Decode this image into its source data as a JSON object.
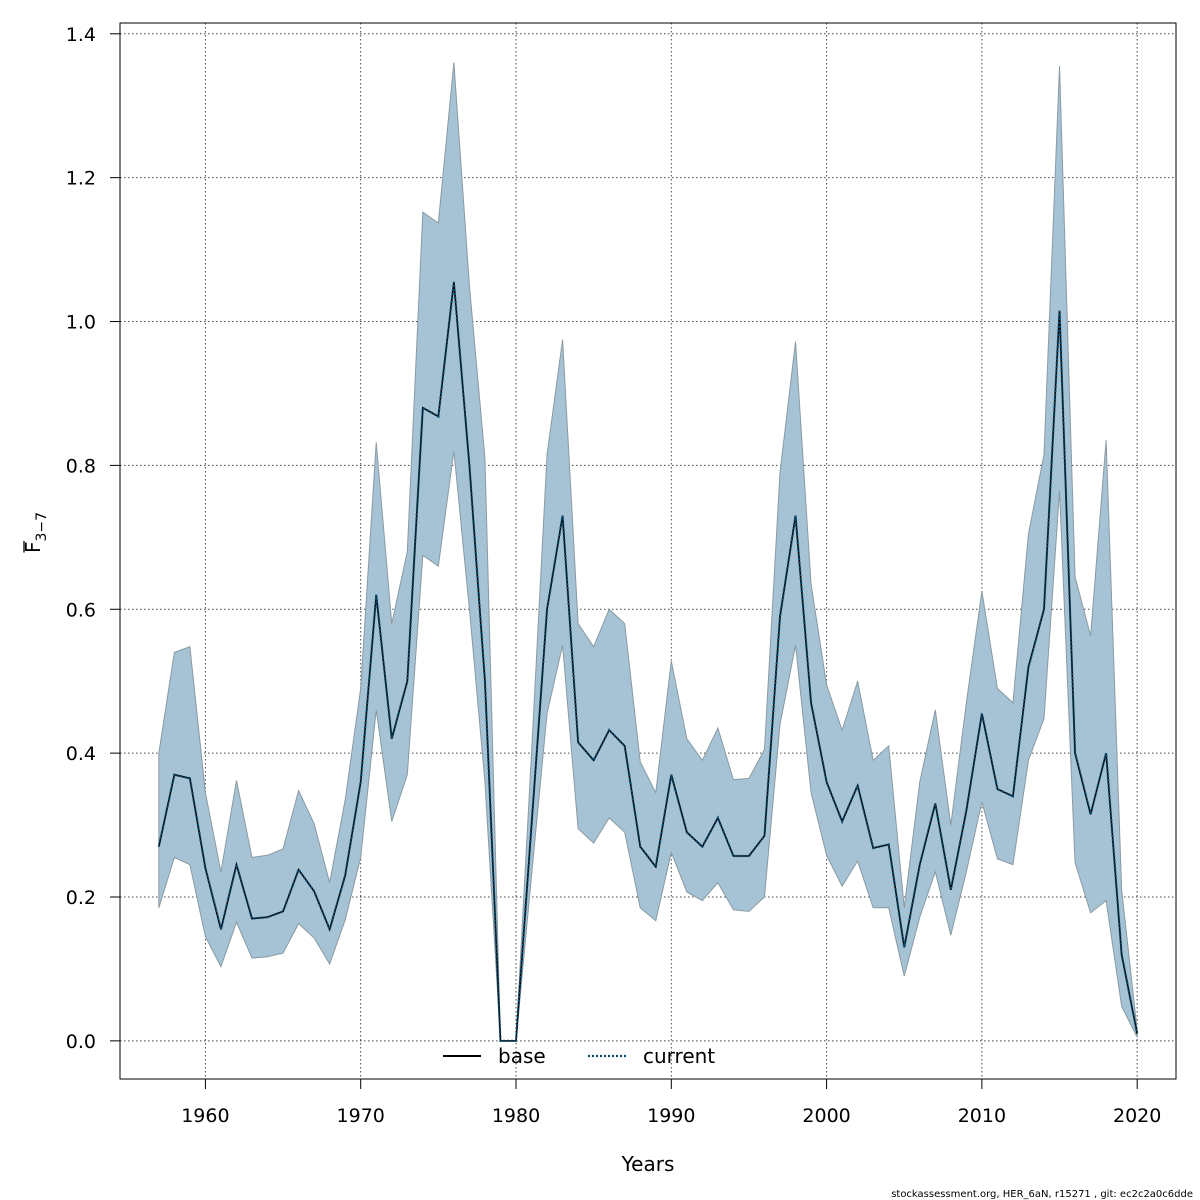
{
  "chart_data": {
    "type": "line",
    "xlabel": "Years",
    "ylabel_main": "F",
    "ylabel_sub": "3−7",
    "xlim": [
      1954.5,
      2022.5
    ],
    "ylim": [
      -0.053,
      1.415
    ],
    "xticks": [
      1960,
      1970,
      1980,
      1990,
      2000,
      2010,
      2020
    ],
    "yticks": [
      0.0,
      0.2,
      0.4,
      0.6,
      0.8,
      1.0,
      1.2,
      1.4
    ],
    "ytick_labels": [
      "0.0",
      "0.2",
      "0.4",
      "0.6",
      "0.8",
      "1.0",
      "1.2",
      "1.4"
    ],
    "grid": true,
    "legend_position": "bottom-center",
    "colors": {
      "band": "#a5c3d4",
      "band_edge": "#8a9aa3",
      "base": "#000000",
      "current": "#0a4a6e",
      "grid": "#444444"
    },
    "x": [
      1957,
      1958,
      1959,
      1960,
      1961,
      1962,
      1963,
      1964,
      1965,
      1966,
      1967,
      1968,
      1969,
      1970,
      1971,
      1972,
      1973,
      1974,
      1975,
      1976,
      1977,
      1978,
      1979,
      1980,
      1981,
      1982,
      1983,
      1984,
      1985,
      1986,
      1987,
      1988,
      1989,
      1990,
      1991,
      1992,
      1993,
      1994,
      1995,
      1996,
      1997,
      1998,
      1999,
      2000,
      2001,
      2002,
      2003,
      2004,
      2005,
      2006,
      2007,
      2008,
      2009,
      2010,
      2011,
      2012,
      2013,
      2014,
      2015,
      2016,
      2017,
      2018,
      2019,
      2020
    ],
    "series": [
      {
        "name": "base",
        "style": "solid",
        "values": [
          0.27,
          0.37,
          0.365,
          0.24,
          0.155,
          0.245,
          0.17,
          0.172,
          0.18,
          0.238,
          0.208,
          0.155,
          0.23,
          0.36,
          0.62,
          0.42,
          0.5,
          0.88,
          0.868,
          1.055,
          0.8,
          0.5,
          0.0,
          0.0,
          0.3,
          0.6,
          0.73,
          0.415,
          0.39,
          0.432,
          0.41,
          0.27,
          0.242,
          0.37,
          0.29,
          0.27,
          0.31,
          0.257,
          0.257,
          0.285,
          0.59,
          0.73,
          0.47,
          0.36,
          0.305,
          0.355,
          0.268,
          0.273,
          0.13,
          0.245,
          0.33,
          0.21,
          0.32,
          0.455,
          0.35,
          0.34,
          0.52,
          0.6,
          1.015,
          0.4,
          0.315,
          0.4,
          0.12,
          0.01
        ]
      },
      {
        "name": "current",
        "style": "dotted",
        "values": [
          0.27,
          0.37,
          0.365,
          0.24,
          0.155,
          0.245,
          0.17,
          0.172,
          0.18,
          0.238,
          0.208,
          0.155,
          0.23,
          0.36,
          0.62,
          0.42,
          0.5,
          0.88,
          0.868,
          1.055,
          0.8,
          0.5,
          0.0,
          0.0,
          0.3,
          0.6,
          0.73,
          0.415,
          0.39,
          0.432,
          0.41,
          0.27,
          0.242,
          0.37,
          0.29,
          0.27,
          0.31,
          0.257,
          0.257,
          0.285,
          0.59,
          0.73,
          0.47,
          0.36,
          0.305,
          0.355,
          0.268,
          0.273,
          0.13,
          0.245,
          0.33,
          0.21,
          0.32,
          0.455,
          0.35,
          0.34,
          0.52,
          0.6,
          1.015,
          0.4,
          0.315,
          0.4,
          0.12,
          0.01
        ]
      }
    ],
    "band_lower": [
      0.185,
      0.255,
      0.245,
      0.145,
      0.103,
      0.165,
      0.115,
      0.117,
      0.122,
      0.163,
      0.143,
      0.107,
      0.168,
      0.255,
      0.46,
      0.305,
      0.37,
      0.675,
      0.66,
      0.82,
      0.6,
      0.36,
      0.0,
      0.0,
      0.23,
      0.455,
      0.55,
      0.295,
      0.275,
      0.31,
      0.29,
      0.185,
      0.167,
      0.262,
      0.207,
      0.195,
      0.22,
      0.182,
      0.18,
      0.2,
      0.44,
      0.55,
      0.345,
      0.258,
      0.215,
      0.25,
      0.185,
      0.185,
      0.09,
      0.172,
      0.235,
      0.147,
      0.235,
      0.332,
      0.253,
      0.245,
      0.39,
      0.448,
      0.765,
      0.248,
      0.178,
      0.195,
      0.048,
      0.005
    ],
    "band_upper": [
      0.4,
      0.54,
      0.548,
      0.345,
      0.235,
      0.362,
      0.255,
      0.258,
      0.267,
      0.348,
      0.302,
      0.22,
      0.335,
      0.49,
      0.832,
      0.58,
      0.68,
      1.152,
      1.137,
      1.36,
      1.05,
      0.81,
      0.0,
      0.0,
      0.4,
      0.815,
      0.975,
      0.58,
      0.548,
      0.6,
      0.58,
      0.388,
      0.345,
      0.528,
      0.42,
      0.39,
      0.435,
      0.363,
      0.365,
      0.405,
      0.79,
      0.972,
      0.635,
      0.495,
      0.432,
      0.5,
      0.39,
      0.41,
      0.185,
      0.36,
      0.46,
      0.3,
      0.47,
      0.625,
      0.49,
      0.47,
      0.705,
      0.815,
      1.355,
      0.645,
      0.563,
      0.835,
      0.21,
      0.015
    ]
  },
  "footer": "stockassessment.org, HER_6aN, r15271 , git: ec2c2a0c6dde"
}
